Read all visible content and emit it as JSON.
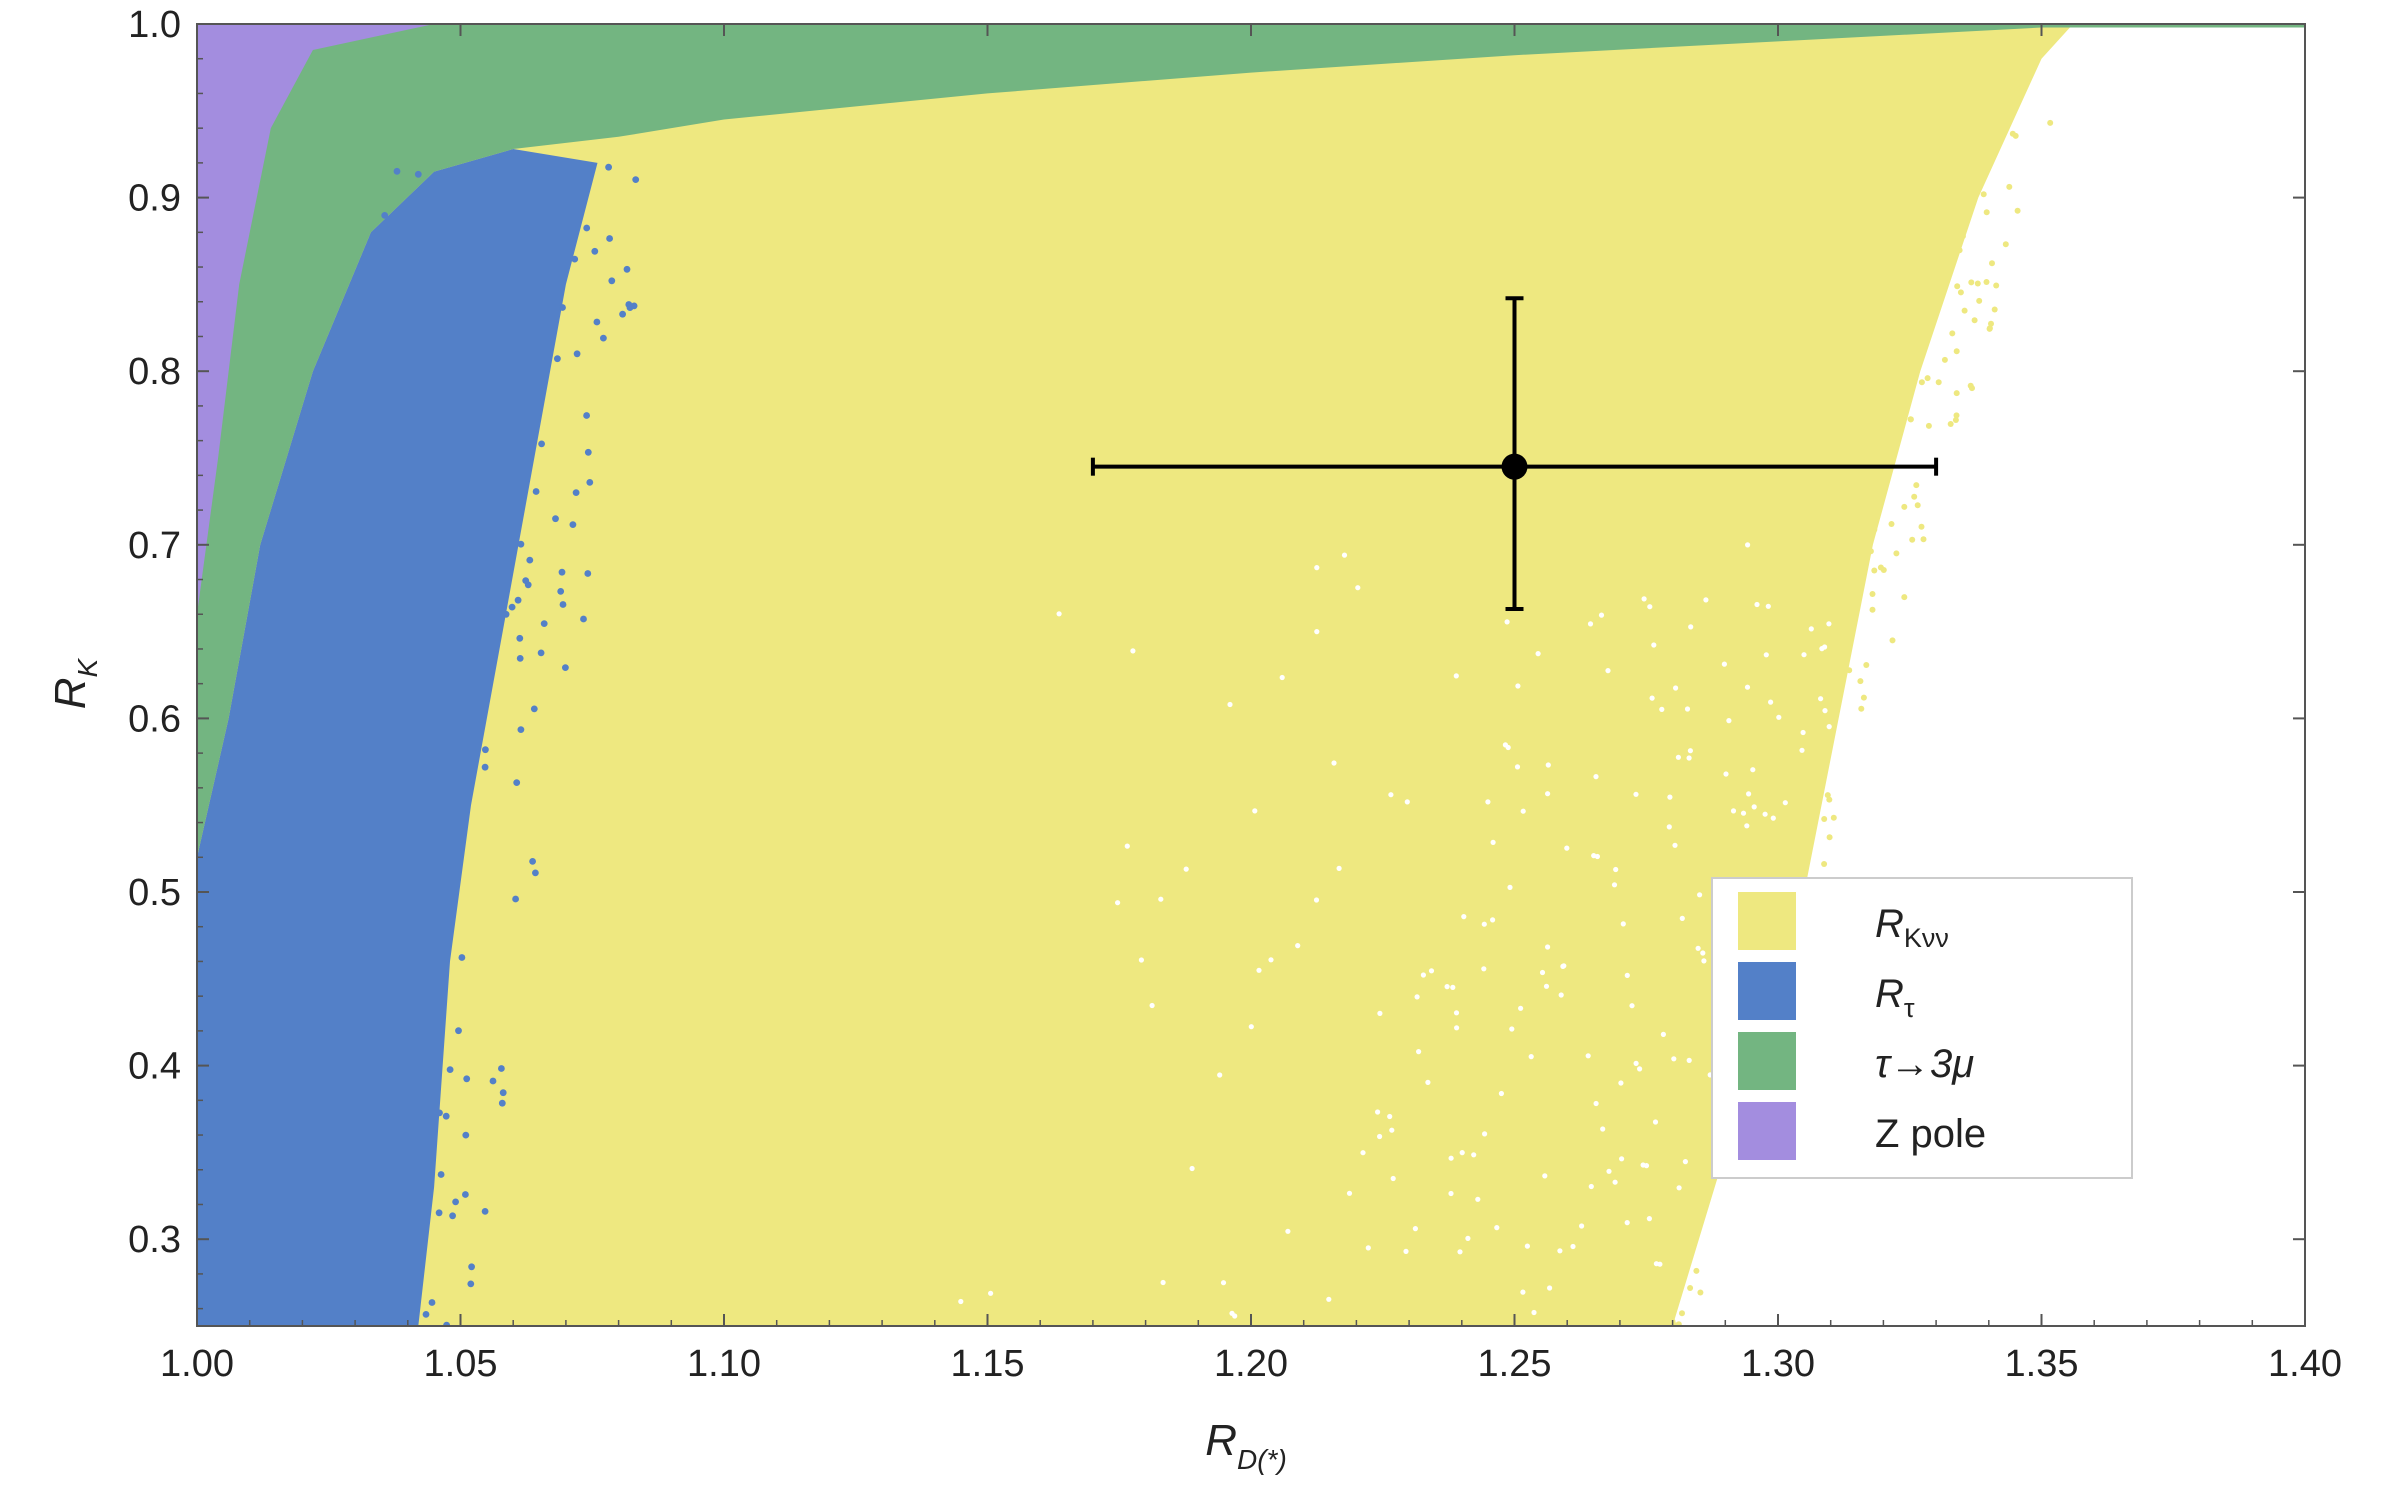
{
  "chart_data": {
    "type": "scatter",
    "title": "",
    "xlabel": "R",
    "xlabel_subscript": "D(*)",
    "ylabel": "R",
    "ylabel_subscript": "K",
    "xlim": [
      1.0,
      1.4
    ],
    "ylim": [
      0.25,
      1.0
    ],
    "x_ticks": [
      "1.00",
      "1.05",
      "1.10",
      "1.15",
      "1.20",
      "1.25",
      "1.30",
      "1.35",
      "1.40"
    ],
    "y_ticks": [
      "0.3",
      "0.4",
      "0.5",
      "0.6",
      "0.7",
      "0.8",
      "0.9",
      "1.0"
    ],
    "legend_position": "lower-right",
    "series": [
      {
        "name": "R_Kνν",
        "label_main": "R",
        "label_sub": "Kνν",
        "color": "#EEE880",
        "region_boundary": [
          {
            "x": 1.0,
            "y": 0.25
          },
          {
            "x": 1.28,
            "y": 0.25
          },
          {
            "x": 1.295,
            "y": 0.4
          },
          {
            "x": 1.305,
            "y": 0.5
          },
          {
            "x": 1.318,
            "y": 0.7
          },
          {
            "x": 1.327,
            "y": 0.8
          },
          {
            "x": 1.338,
            "y": 0.9
          },
          {
            "x": 1.35,
            "y": 0.98
          },
          {
            "x": 1.356,
            "y": 1.0
          },
          {
            "x": 1.0,
            "y": 1.0
          }
        ]
      },
      {
        "name": "R_τ",
        "label_main": "R",
        "label_sub": "τ",
        "color": "#5380C8",
        "region_boundary": [
          {
            "x": 1.0,
            "y": 0.25
          },
          {
            "x": 1.042,
            "y": 0.25
          },
          {
            "x": 1.045,
            "y": 0.33
          },
          {
            "x": 1.048,
            "y": 0.46
          },
          {
            "x": 1.052,
            "y": 0.55
          },
          {
            "x": 1.058,
            "y": 0.65
          },
          {
            "x": 1.064,
            "y": 0.75
          },
          {
            "x": 1.07,
            "y": 0.85
          },
          {
            "x": 1.076,
            "y": 0.92
          },
          {
            "x": 1.06,
            "y": 0.928
          },
          {
            "x": 1.045,
            "y": 0.915
          },
          {
            "x": 1.033,
            "y": 0.88
          },
          {
            "x": 1.022,
            "y": 0.8
          },
          {
            "x": 1.012,
            "y": 0.7
          },
          {
            "x": 1.006,
            "y": 0.6
          },
          {
            "x": 1.0,
            "y": 0.52
          }
        ]
      },
      {
        "name": "τ→3μ",
        "label_main": "τ→3μ",
        "label_sub": "",
        "color": "#73B581",
        "region_boundary": [
          {
            "x": 1.0,
            "y": 0.52
          },
          {
            "x": 1.006,
            "y": 0.6
          },
          {
            "x": 1.012,
            "y": 0.7
          },
          {
            "x": 1.022,
            "y": 0.8
          },
          {
            "x": 1.033,
            "y": 0.88
          },
          {
            "x": 1.045,
            "y": 0.915
          },
          {
            "x": 1.06,
            "y": 0.928
          },
          {
            "x": 1.08,
            "y": 0.935
          },
          {
            "x": 1.1,
            "y": 0.945
          },
          {
            "x": 1.15,
            "y": 0.96
          },
          {
            "x": 1.2,
            "y": 0.972
          },
          {
            "x": 1.25,
            "y": 0.982
          },
          {
            "x": 1.3,
            "y": 0.99
          },
          {
            "x": 1.35,
            "y": 0.998
          },
          {
            "x": 1.4,
            "y": 0.998
          },
          {
            "x": 1.4,
            "y": 1.0
          },
          {
            "x": 1.0,
            "y": 1.0
          }
        ]
      },
      {
        "name": "Z pole",
        "label_main": "Z pole",
        "label_sub": "",
        "color": "#A38DDF",
        "region_boundary": [
          {
            "x": 1.0,
            "y": 0.66
          },
          {
            "x": 1.004,
            "y": 0.75
          },
          {
            "x": 1.008,
            "y": 0.85
          },
          {
            "x": 1.014,
            "y": 0.94
          },
          {
            "x": 1.022,
            "y": 0.985
          },
          {
            "x": 1.045,
            "y": 1.0
          },
          {
            "x": 1.0,
            "y": 1.0
          }
        ]
      }
    ],
    "data_point": {
      "x": 1.25,
      "y": 0.745,
      "x_err": [
        1.17,
        1.33
      ],
      "y_err": [
        0.663,
        0.842
      ]
    }
  }
}
